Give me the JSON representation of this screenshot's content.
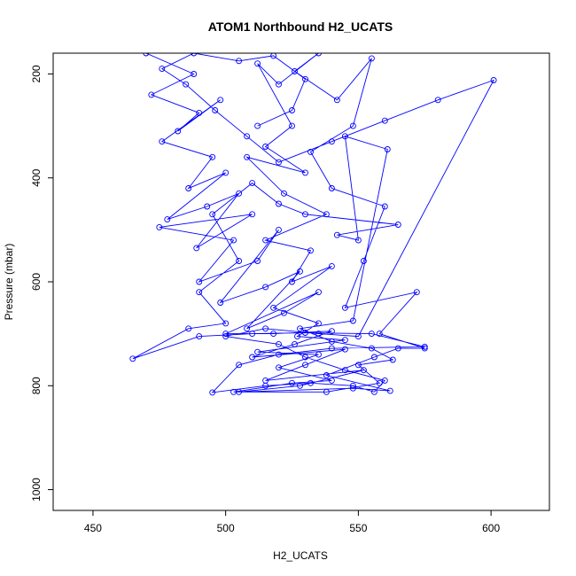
{
  "chart_data": {
    "type": "line",
    "title": "ATOM1 Northbound H2_UCATS",
    "xlabel": "H2_UCATS",
    "ylabel": "Pressure (mbar)",
    "xlim": [
      435,
      622
    ],
    "ylim": [
      1040,
      160
    ],
    "y_reversed": true,
    "grid": false,
    "legend": "none",
    "line_color": "#0000ff",
    "x_ticks": [
      450,
      500,
      550,
      600
    ],
    "y_ticks": [
      200,
      400,
      600,
      800,
      1000
    ],
    "series": [
      {
        "points": [
          [
            470,
            160
          ],
          [
            488,
            200
          ],
          [
            472,
            240
          ],
          [
            490,
            275
          ],
          [
            482,
            310
          ],
          [
            498,
            250
          ],
          [
            476,
            330
          ],
          [
            495,
            360
          ],
          [
            486,
            420
          ],
          [
            500,
            390
          ],
          [
            478,
            480
          ],
          [
            493,
            455
          ],
          [
            505,
            430
          ],
          [
            489,
            535
          ],
          [
            510,
            470
          ],
          [
            475,
            495
          ],
          [
            503,
            520
          ],
          [
            490,
            600
          ],
          [
            512,
            560
          ],
          [
            520,
            500
          ],
          [
            498,
            640
          ],
          [
            515,
            610
          ],
          [
            528,
            580
          ],
          [
            508,
            690
          ],
          [
            522,
            660
          ],
          [
            535,
            620
          ],
          [
            500,
            700
          ],
          [
            518,
            700
          ],
          [
            540,
            695
          ],
          [
            526,
            720
          ],
          [
            510,
            745
          ],
          [
            545,
            730
          ],
          [
            530,
            760
          ],
          [
            515,
            790
          ],
          [
            552,
            770
          ],
          [
            528,
            800
          ],
          [
            505,
            812
          ],
          [
            548,
            805
          ],
          [
            562,
            810
          ],
          [
            538,
            780
          ],
          [
            556,
            745
          ],
          [
            565,
            728
          ],
          [
            575,
            728
          ],
          [
            558,
            700
          ],
          [
            572,
            620
          ],
          [
            545,
            650
          ],
          [
            552,
            560
          ],
          [
            560,
            455
          ],
          [
            540,
            420
          ],
          [
            532,
            350
          ],
          [
            548,
            300
          ],
          [
            555,
            170
          ],
          [
            542,
            250
          ],
          [
            526,
            195
          ],
          [
            535,
            160
          ],
          [
            520,
            220
          ],
          [
            512,
            180
          ],
          [
            525,
            300
          ],
          [
            515,
            340
          ],
          [
            530,
            390
          ],
          [
            508,
            360
          ],
          [
            522,
            430
          ],
          [
            538,
            470
          ],
          [
            515,
            520
          ],
          [
            532,
            540
          ],
          [
            525,
            600
          ],
          [
            540,
            570
          ],
          [
            518,
            650
          ],
          [
            535,
            680
          ],
          [
            527,
            705
          ],
          [
            545,
            712
          ],
          [
            512,
            735
          ],
          [
            535,
            740
          ],
          [
            520,
            765
          ],
          [
            540,
            790
          ],
          [
            525,
            795
          ],
          [
            503,
            812
          ],
          [
            538,
            812
          ],
          [
            558,
            795
          ],
          [
            550,
            760
          ],
          [
            563,
            750
          ],
          [
            555,
            728
          ],
          [
            540,
            715
          ],
          [
            528,
            690
          ],
          [
            548,
            675
          ],
          [
            561,
            345
          ],
          [
            545,
            320
          ],
          [
            550,
            520
          ],
          [
            542,
            510
          ],
          [
            565,
            490
          ],
          [
            530,
            470
          ],
          [
            520,
            450
          ],
          [
            510,
            410
          ],
          [
            495,
            470
          ],
          [
            505,
            560
          ],
          [
            490,
            620
          ],
          [
            500,
            680
          ],
          [
            486,
            690
          ],
          [
            465,
            748
          ],
          [
            490,
            705
          ],
          [
            510,
            700
          ],
          [
            530,
            698
          ],
          [
            555,
            700
          ],
          [
            575,
            725
          ],
          [
            540,
            728
          ],
          [
            520,
            740
          ],
          [
            505,
            760
          ],
          [
            495,
            813
          ],
          [
            515,
            800
          ],
          [
            532,
            795
          ],
          [
            548,
            800
          ],
          [
            556,
            812
          ],
          [
            560,
            790
          ],
          [
            545,
            770
          ],
          [
            530,
            745
          ],
          [
            520,
            720
          ],
          [
            500,
            705
          ],
          [
            515,
            690
          ],
          [
            535,
            700
          ],
          [
            550,
            705
          ],
          [
            601,
            212
          ],
          [
            580,
            250
          ],
          [
            560,
            290
          ],
          [
            540,
            330
          ],
          [
            520,
            370
          ],
          [
            508,
            320
          ],
          [
            496,
            270
          ],
          [
            485,
            220
          ],
          [
            476,
            190
          ],
          [
            488,
            160
          ],
          [
            505,
            175
          ],
          [
            518,
            165
          ],
          [
            530,
            210
          ],
          [
            525,
            270
          ],
          [
            512,
            300
          ]
        ]
      }
    ]
  }
}
